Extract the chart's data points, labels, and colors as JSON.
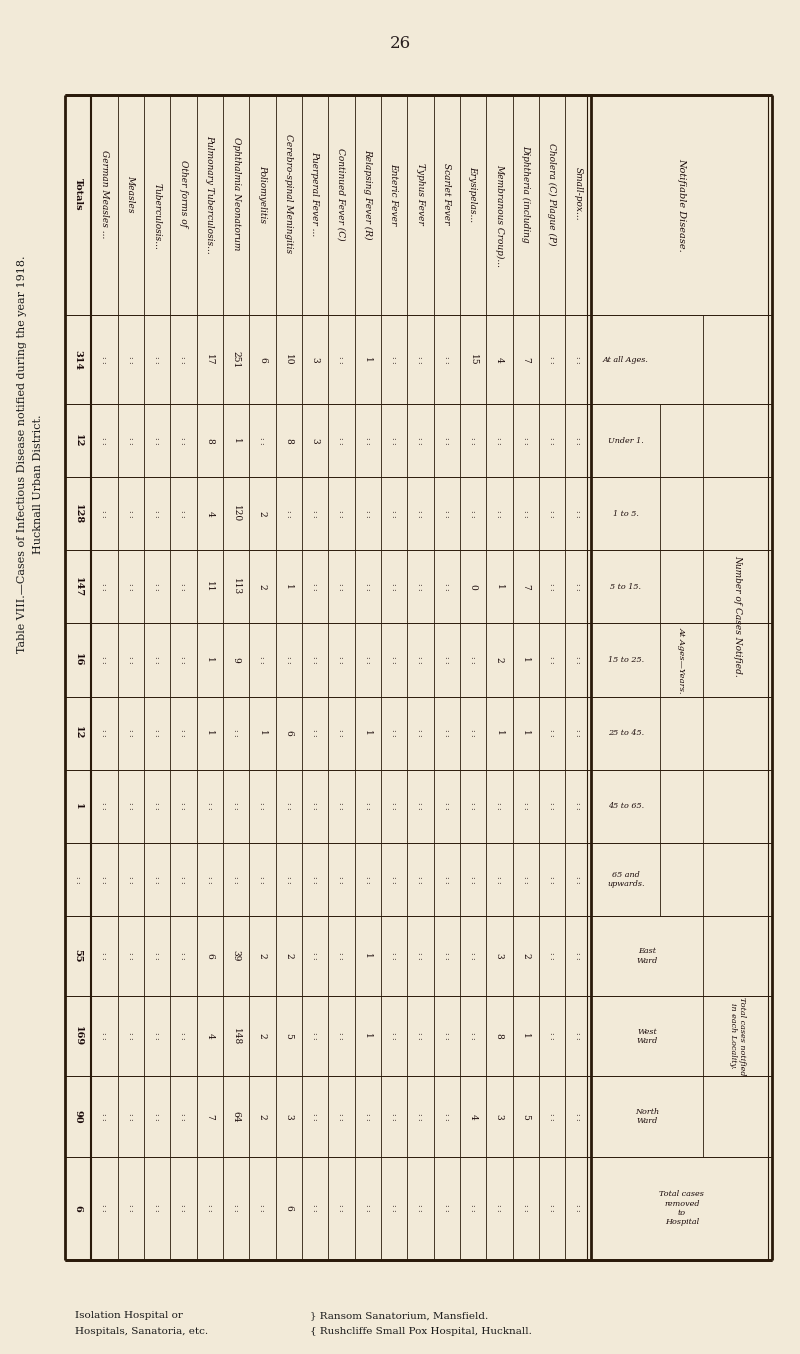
{
  "page_number": "26",
  "title_line1": "Table VIII.—Cases of Infectious Disease notified during the year 1918.",
  "title_line2": "Hucknall Urban District.",
  "bg_color": "#f2ead8",
  "diseases": [
    "Small-pox...",
    "Cholera (C) Plague (P)",
    "Diphtheria (including",
    "  Membranous Croup)...",
    "Erysipelas...",
    "Scarlet Fever",
    "Typhus Fever",
    "Enteric Fever",
    "Relapsing Fever (R)",
    "Continued Fever (C)",
    "Puerperal Fever ...",
    "Cerebro-spinal Meningitis",
    "Poliomyelitis",
    "Ophthalmia Neonatorum",
    "Pulmonary Tuberculosis...",
    "Other forms of",
    "  Tuberculosis...",
    "Measles",
    "German Measles ...",
    "Totals"
  ],
  "col_headers": [
    "At all Ages.",
    "Under 1.",
    "1 to 5.",
    "5 to 15.",
    "15 to 25.",
    "25 to 45.",
    "45 to 65.",
    "65 and\nupwards.",
    "East\nWard",
    "West\nWard",
    "North\nWard",
    "Total cases\nremoved\nto\nHospital"
  ],
  "group1_label": "Number of Cases Notified.",
  "group1_sub_label": "At Ages—Years.",
  "group2_label": "Total cases notified\nin each Locality.",
  "notifiable_label": "Notifiable Disease.",
  "footer_left": "Isolation Hospital or",
  "footer_hospitals": "Hospitals, Sanatoria, etc.",
  "footer_right1": "} Ransom Sanatorium, Mansfield.",
  "footer_right2": "{ Rushcliffe Small Pox Hospital, Hucknall.",
  "dot": ": :",
  "table_data": [
    [
      ":",
      ":",
      ":",
      ":",
      ":",
      ":",
      ":",
      ":",
      ":",
      ":",
      ":",
      ":"
    ],
    [
      ":",
      ":",
      ":",
      ":",
      ":",
      ":",
      ":",
      ":",
      ":",
      ":",
      ":",
      ":"
    ],
    [
      "7",
      ":",
      ":",
      "7",
      "1",
      "1",
      ":",
      ":",
      "2",
      "1",
      "5",
      ":"
    ],
    [
      "4",
      ":",
      ":",
      "1",
      "2",
      "1",
      ":",
      ":",
      "3",
      "8",
      "3",
      ":"
    ],
    [
      "15",
      ":",
      ":",
      "0",
      ":",
      ":",
      ":",
      ":",
      ":",
      ":",
      "4",
      ":"
    ],
    [
      ":",
      ":",
      ":",
      ":",
      ":",
      ":",
      ":",
      ":",
      ":",
      ":",
      ":",
      ":"
    ],
    [
      ":",
      ":",
      ":",
      ":",
      ":",
      ":",
      ":",
      ":",
      ":",
      ":",
      ":",
      ":"
    ],
    [
      ":",
      ":",
      ":",
      ":",
      ":",
      ":",
      ":",
      ":",
      ":",
      ":",
      ":",
      ":"
    ],
    [
      "1",
      ":",
      ":",
      ":",
      ":",
      "1",
      ":",
      ":",
      "1",
      "1",
      ":",
      ":"
    ],
    [
      ":",
      ":",
      ":",
      ":",
      ":",
      ":",
      ":",
      ":",
      ":",
      ":",
      ":",
      ":"
    ],
    [
      "3",
      "3",
      ":",
      ":",
      ":",
      ":",
      ":",
      ":",
      ":",
      ":",
      ":",
      ":"
    ],
    [
      "10",
      "8",
      ":",
      "1",
      ":",
      "6",
      ":",
      ":",
      "2",
      "5",
      "3",
      "6"
    ],
    [
      "6",
      ":",
      "2",
      "2",
      ":",
      "1",
      ":",
      ":",
      "2",
      "2",
      "2",
      ":"
    ],
    [
      "251",
      "1",
      "120",
      "113",
      "9",
      ":",
      ":",
      ":",
      "39",
      "148",
      "64",
      ":"
    ],
    [
      "17",
      "8",
      "4",
      "11",
      "1",
      "1",
      ":",
      ":",
      "6",
      "4",
      "7",
      ":"
    ],
    [
      ":",
      ":",
      ":",
      ":",
      ":",
      ":",
      ":",
      ":",
      ":",
      ":",
      ":",
      ":"
    ],
    [
      ":",
      ":",
      ":",
      ":",
      ":",
      ":",
      ":",
      ":",
      ":",
      ":",
      ":",
      ":"
    ],
    [
      ":",
      ":",
      ":",
      ":",
      ":",
      ":",
      ":",
      ":",
      ":",
      ":",
      ":",
      ":"
    ],
    [
      ":",
      ":",
      ":",
      ":",
      ":",
      ":",
      ":",
      ":",
      ":",
      ":",
      ":",
      ":"
    ],
    [
      "314",
      "12",
      "128",
      "147",
      "16",
      "12",
      "1",
      ":",
      "55",
      "169",
      "90",
      "6"
    ]
  ],
  "totals_row": [
    "314",
    "12",
    "128",
    "147",
    "16",
    "12",
    "1",
    ".",
    "55",
    "169",
    "90",
    "6"
  ]
}
